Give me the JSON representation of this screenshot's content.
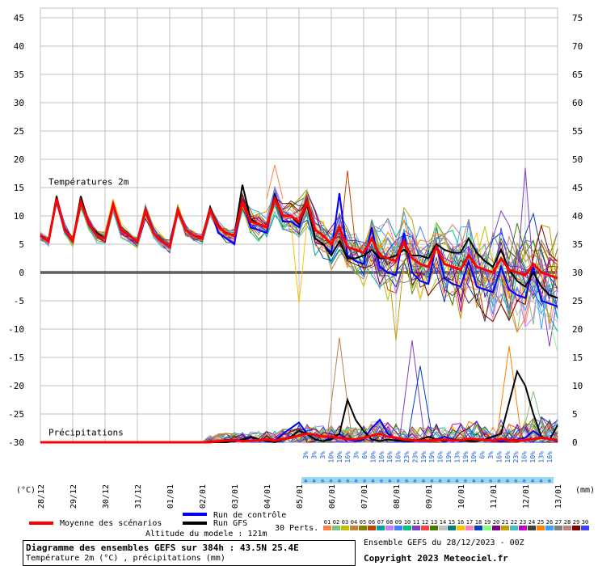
{
  "chart_data": {
    "type": "line",
    "title": "Diagramme des ensembles GEFS sur 384h : 43.5N 25.4E",
    "subtitle": "Température 2m (°C) , précipitations (mm)",
    "left_axis_label": "(°C)",
    "right_axis_label": "(mm)",
    "y_left": {
      "min": -30,
      "max": 45,
      "ticks": [
        45,
        40,
        35,
        30,
        25,
        20,
        15,
        10,
        5,
        0,
        -5,
        -10,
        -15,
        -20,
        -25,
        -30
      ]
    },
    "y_right": {
      "min": 0,
      "max": 75,
      "ticks": [
        75,
        70,
        65,
        60,
        55,
        50,
        45,
        40,
        35,
        30,
        25,
        20,
        15,
        10,
        5,
        0
      ]
    },
    "x_tick_labels": [
      "28/12",
      "29/12",
      "30/12",
      "31/12",
      "01/01",
      "02/01",
      "03/01",
      "04/01",
      "05/01",
      "06/01",
      "07/01",
      "08/01",
      "09/01",
      "10/01",
      "11/01",
      "12/01",
      "13/01"
    ],
    "panel_labels": {
      "temperature": "Températures 2m",
      "precip": "Précipitations"
    },
    "freezing_line": 0,
    "series": [
      {
        "name": "Moyenne des scénarios",
        "color": "#ff0000",
        "x_days": [
          0,
          0.25,
          0.5,
          0.75,
          1,
          1.25,
          1.5,
          1.75,
          2,
          2.25,
          2.5,
          2.75,
          3,
          3.25,
          3.5,
          3.75,
          4,
          4.25,
          4.5,
          4.75,
          5,
          5.25,
          5.5,
          5.75,
          6,
          6.25,
          6.5,
          6.75,
          7,
          7.25,
          7.5,
          7.75,
          8,
          8.25,
          8.5,
          8.75,
          9,
          9.25,
          9.5,
          9.75,
          10,
          10.25,
          10.5,
          10.75,
          11,
          11.25,
          11.5,
          11.75,
          12,
          12.25,
          12.5,
          12.75,
          13,
          13.25,
          13.5,
          13.75,
          14,
          14.25,
          14.5,
          14.75,
          15,
          15.25,
          15.5,
          15.75,
          16
        ],
        "temp": [
          6.5,
          5.5,
          13,
          7.5,
          5.5,
          12.5,
          8.5,
          6.5,
          6,
          12,
          7.5,
          6.5,
          5.5,
          11,
          7,
          5.5,
          4.5,
          11,
          7.5,
          6.5,
          6,
          11,
          8,
          7,
          6.5,
          12.5,
          9,
          8.5,
          8,
          13,
          10,
          10,
          9,
          12.5,
          7.5,
          6.5,
          5,
          8,
          4.5,
          4,
          3.5,
          6,
          3,
          2.5,
          2,
          5.5,
          2.5,
          1.5,
          1,
          4.5,
          1.5,
          1,
          0.5,
          3,
          1,
          0.5,
          0,
          2.5,
          0.5,
          0,
          -0.5,
          1.5,
          0,
          -0.5,
          -1
        ],
        "precip": [
          0,
          0,
          0,
          0,
          0,
          0,
          0,
          0,
          0,
          0,
          0,
          0,
          0,
          0,
          0,
          0,
          0,
          0,
          0,
          0,
          0,
          0,
          0.2,
          0.3,
          0.4,
          0.2,
          0.3,
          0.4,
          0.5,
          0.3,
          0.6,
          0.8,
          1.2,
          1.5,
          1.3,
          1,
          1,
          0.8,
          0.6,
          0.5,
          0.8,
          1.2,
          1.5,
          1,
          0.8,
          0.5,
          0.4,
          0.3,
          0.3,
          0.4,
          0.5,
          0.3,
          0.4,
          0.6,
          0.5,
          0.4,
          0.3,
          0.6,
          0.4,
          0.3,
          0.4,
          0.6,
          0.8,
          0.6,
          0.4
        ]
      },
      {
        "name": "Run de contrôle",
        "color": "#0000ff",
        "x_days": [
          0,
          0.25,
          0.5,
          0.75,
          1,
          1.25,
          1.5,
          1.75,
          2,
          2.25,
          2.5,
          2.75,
          3,
          3.25,
          3.5,
          3.75,
          4,
          4.25,
          4.5,
          4.75,
          5,
          5.25,
          5.5,
          5.75,
          6,
          6.25,
          6.5,
          6.75,
          7,
          7.25,
          7.5,
          7.75,
          8,
          8.25,
          8.5,
          8.75,
          9,
          9.25,
          9.5,
          9.75,
          10,
          10.25,
          10.5,
          10.75,
          11,
          11.25,
          11.5,
          11.75,
          12,
          12.25,
          12.5,
          12.75,
          13,
          13.25,
          13.5,
          13.75,
          14,
          14.25,
          14.5,
          14.75,
          15,
          15.25,
          15.5,
          15.75,
          16
        ],
        "temp": [
          6.5,
          5.5,
          13,
          7.5,
          5.5,
          12.5,
          8.5,
          6.5,
          6,
          12,
          7.5,
          6.5,
          5.5,
          11,
          7,
          5.5,
          4.5,
          11,
          7.5,
          6.5,
          6,
          11.5,
          7,
          6,
          5,
          13,
          8,
          7.5,
          7,
          14,
          9,
          9,
          8,
          13,
          6,
          5,
          3.5,
          14,
          3,
          2,
          1.5,
          8,
          1,
          0,
          -0.5,
          7,
          0,
          -1.5,
          -2,
          5,
          -1,
          -2,
          -2.5,
          2,
          -2.5,
          -3,
          -3.5,
          1,
          -3,
          -4,
          -4.5,
          1,
          -5,
          -5.5,
          -6
        ],
        "precip": [
          0,
          0,
          0,
          0,
          0,
          0,
          0,
          0,
          0,
          0,
          0,
          0,
          0,
          0,
          0,
          0,
          0,
          0,
          0,
          0,
          0,
          0,
          0,
          0.5,
          0.2,
          0.3,
          0.8,
          0.5,
          0.2,
          0.3,
          1.5,
          2.5,
          3.5,
          1.5,
          0.5,
          0.2,
          0.8,
          1.5,
          0.5,
          0.2,
          0.5,
          2.5,
          4,
          1.5,
          0.5,
          0.3,
          0.2,
          0.5,
          0.2,
          0.5,
          1,
          0.5,
          0.2,
          0.3,
          0.2,
          0.5,
          0.3,
          0.2,
          0.3,
          0.5,
          0.8,
          2,
          1,
          0.5,
          0.2
        ]
      },
      {
        "name": "Run GFS",
        "color": "#000000",
        "x_days": [
          0,
          0.25,
          0.5,
          0.75,
          1,
          1.25,
          1.5,
          1.75,
          2,
          2.25,
          2.5,
          2.75,
          3,
          3.25,
          3.5,
          3.75,
          4,
          4.25,
          4.5,
          4.75,
          5,
          5.25,
          5.5,
          5.75,
          6,
          6.25,
          6.5,
          6.75,
          7,
          7.25,
          7.5,
          7.75,
          8,
          8.25,
          8.5,
          8.75,
          9,
          9.25,
          9.5,
          9.75,
          10,
          10.25,
          10.5,
          10.75,
          11,
          11.25,
          11.5,
          11.75,
          12,
          12.25,
          12.5,
          12.75,
          13,
          13.25,
          13.5,
          13.75,
          14,
          14.25,
          14.5,
          14.75,
          15,
          15.25,
          15.5,
          15.75,
          16
        ],
        "temp": [
          6.5,
          5.5,
          13.5,
          7.5,
          5.5,
          13.5,
          8.5,
          7,
          6,
          12,
          7.5,
          6.5,
          5.5,
          11,
          7,
          5.5,
          4.5,
          11,
          7.5,
          6.5,
          6,
          11.5,
          8,
          7,
          6.5,
          15.5,
          9.5,
          8.5,
          8,
          13.5,
          10,
          10,
          8.5,
          12,
          6,
          5,
          3,
          5.5,
          2.5,
          2.5,
          3,
          4,
          2.5,
          2.5,
          3,
          4,
          3,
          3,
          2.5,
          5,
          4,
          3.5,
          3.5,
          6,
          3.5,
          2,
          1,
          4,
          0.5,
          -1.5,
          -2.5,
          0,
          -2.5,
          -4,
          -4.5
        ],
        "precip": [
          0,
          0,
          0,
          0,
          0,
          0,
          0,
          0,
          0,
          0,
          0,
          0,
          0,
          0,
          0,
          0,
          0,
          0,
          0,
          0,
          0,
          0,
          0,
          0,
          0.2,
          0.5,
          1,
          0.5,
          0.2,
          0,
          0.5,
          1,
          2,
          1.5,
          0.5,
          0.2,
          0.5,
          1.5,
          7.5,
          4,
          2,
          0.5,
          0.2,
          0.5,
          0.3,
          0.2,
          0.2,
          0.5,
          1,
          0.5,
          0.2,
          0.5,
          0.3,
          0.2,
          0.2,
          0.5,
          1,
          1.5,
          7,
          12.5,
          10,
          5,
          1,
          0.5,
          3,
          5,
          4
        ]
      }
    ],
    "ensemble_note": "30 Perts.",
    "member_ids": [
      "01",
      "02",
      "03",
      "04",
      "05",
      "06",
      "07",
      "08",
      "09",
      "10",
      "11",
      "12",
      "13",
      "14",
      "15",
      "16",
      "17",
      "18",
      "19",
      "20",
      "21",
      "22",
      "23",
      "24",
      "25",
      "26",
      "27",
      "28",
      "29",
      "30"
    ],
    "member_colors": [
      "#ff8040",
      "#80c080",
      "#c0c000",
      "#c08040",
      "#808000",
      "#c04000",
      "#00a0a0",
      "#c080ff",
      "#4080ff",
      "#00c080",
      "#8040c0",
      "#ff4040",
      "#408000",
      "#c0c0c0",
      "#008080",
      "#ffc000",
      "#ff80c0",
      "#0040c0",
      "#80ff80",
      "#800080",
      "#c0a000",
      "#40c0c0",
      "#c000c0",
      "#404040",
      "#ff8000",
      "#40a0ff",
      "#808080",
      "#c08080",
      "#800000",
      "#4040ff"
    ],
    "snow_percent_labels": [
      "3%",
      "3%",
      "3%",
      "10%",
      "10%",
      "16%",
      "3%",
      "6%",
      "10%",
      "16%",
      "16%",
      "16%",
      "23%",
      "23%",
      "19%",
      "19%",
      "16%",
      "19%",
      "13%",
      "19%",
      "10%",
      "6%",
      "3%",
      "16%",
      "16%",
      "23%",
      "16%",
      "10%",
      "13%",
      "16%"
    ],
    "ensemble_temp_extremes": [
      {
        "x_day": 7.25,
        "temp": 19
      },
      {
        "x_day": 9.5,
        "temp": 18
      },
      {
        "x_day": 15,
        "temp": 18.5
      },
      {
        "x_day": 8,
        "temp": -5.5
      },
      {
        "x_day": 11,
        "temp": -12
      },
      {
        "x_day": 15.5,
        "temp": -10
      }
    ],
    "ensemble_precip_peaks": [
      {
        "x_day": 9.25,
        "mm": 18.5
      },
      {
        "x_day": 11.5,
        "mm": 18
      },
      {
        "x_day": 11.75,
        "mm": 13.5
      },
      {
        "x_day": 14.5,
        "mm": 17
      },
      {
        "x_day": 15.25,
        "mm": 9
      }
    ],
    "legend": {
      "mean": "Moyenne des scénarios",
      "control": "Run de contrôle",
      "gfs": "Run GFS",
      "altitude": "Altitude du modele : 121m"
    },
    "footer": {
      "title": "Diagramme des ensembles GEFS sur 384h : 43.5N 25.4E",
      "subtitle": "Température 2m (°C) , précipitations (mm)",
      "run_info": "Ensemble GEFS du 28/12/2023 - 00Z",
      "copyright": "Copyright 2023 Meteociel.fr"
    }
  }
}
